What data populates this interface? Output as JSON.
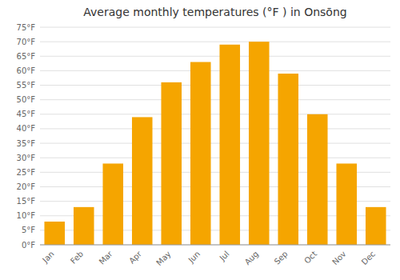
{
  "chart_data": {
    "type": "bar",
    "title": "Average monthly temperatures (°F ) in Onsōng",
    "categories": [
      "Jan",
      "Feb",
      "Mar",
      "Apr",
      "May",
      "Jun",
      "Jul",
      "Aug",
      "Sep",
      "Oct",
      "Nov",
      "Dec"
    ],
    "values": [
      8,
      13,
      28,
      44,
      56,
      63,
      69,
      70,
      59,
      45,
      28,
      13
    ],
    "color": "#F5A500",
    "ylim": [
      0,
      75
    ],
    "yticks": [
      {
        "value": 0,
        "label": "0°F"
      },
      {
        "value": 5,
        "label": "5°F"
      },
      {
        "value": 10,
        "label": "10°F"
      },
      {
        "value": 15,
        "label": "15°F"
      },
      {
        "value": 20,
        "label": "20°F"
      },
      {
        "value": 25,
        "label": "25°F"
      },
      {
        "value": 30,
        "label": "30°F"
      },
      {
        "value": 35,
        "label": "35°F"
      },
      {
        "value": 40,
        "label": "40°F"
      },
      {
        "value": 45,
        "label": "45°F"
      },
      {
        "value": 50,
        "label": "50°F"
      },
      {
        "value": 55,
        "label": "55°F"
      },
      {
        "value": 60,
        "label": "60°F"
      },
      {
        "value": 65,
        "label": "65°F"
      },
      {
        "value": 70,
        "label": "70°F"
      },
      {
        "value": 75,
        "label": "75°F"
      }
    ],
    "grid": true
  }
}
